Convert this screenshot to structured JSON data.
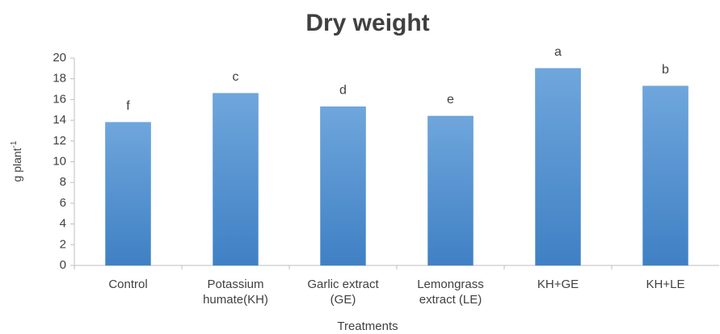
{
  "chart_data": {
    "type": "bar",
    "title": "Dry weight",
    "x_label": "Treatments",
    "y_label": "g plant",
    "y_label_superscript": "-1",
    "categories": [
      "Control",
      "Potassium humate(KH)",
      "Garlic extract (GE)",
      "Lemongrass extract (LE)",
      "KH+GE",
      "KH+LE"
    ],
    "values": [
      13.8,
      16.6,
      15.3,
      14.4,
      19.0,
      17.3
    ],
    "annotations": [
      "f",
      "c",
      "d",
      "e",
      "a",
      "b"
    ],
    "color": "#4f8fd0",
    "ylim": [
      0,
      20
    ],
    "yticks": [
      0,
      2,
      4,
      6,
      8,
      10,
      12,
      14,
      16,
      18,
      20
    ],
    "grid": false
  }
}
